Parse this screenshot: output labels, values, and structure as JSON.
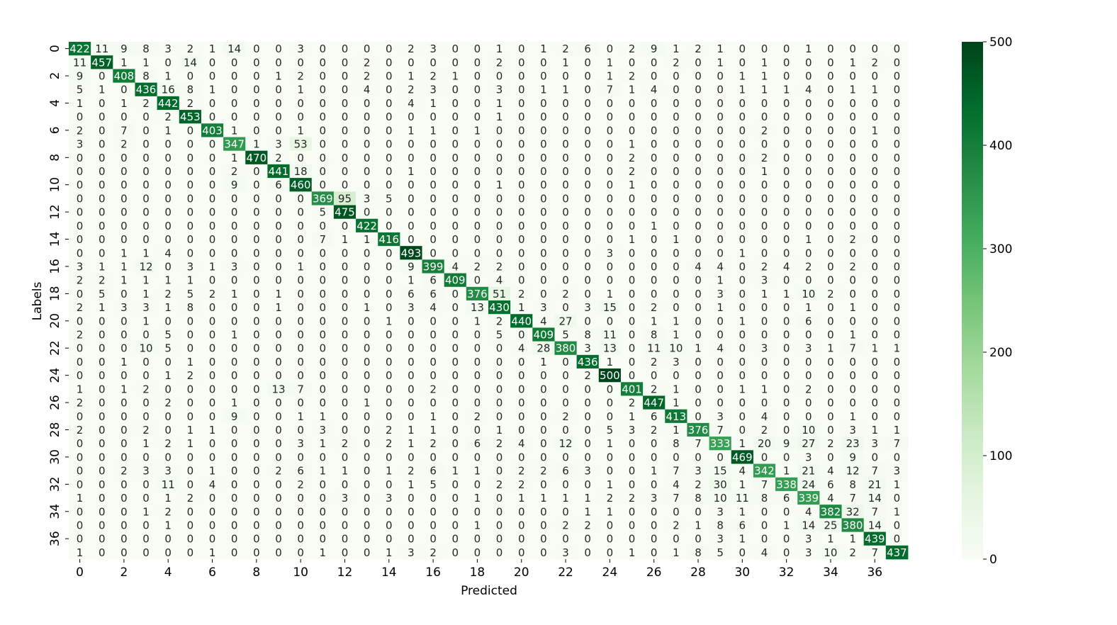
{
  "chart_data": {
    "type": "heatmap",
    "title": "",
    "xlabel": "Predicted",
    "ylabel": "Labels",
    "x_tick_labels": [
      "0",
      "2",
      "4",
      "6",
      "8",
      "10",
      "12",
      "14",
      "16",
      "18",
      "20",
      "22",
      "24",
      "26",
      "28",
      "30",
      "32",
      "34",
      "36"
    ],
    "y_tick_labels": [
      "0",
      "2",
      "4",
      "6",
      "8",
      "10",
      "12",
      "14",
      "16",
      "18",
      "20",
      "22",
      "24",
      "26",
      "28",
      "30",
      "32",
      "34",
      "36"
    ],
    "colorbar": {
      "range": [
        0,
        500
      ],
      "ticks": [
        "0",
        "100",
        "200",
        "300",
        "400",
        "500"
      ],
      "colormap": "Greens"
    },
    "colors": {
      "low": "#f7fcf5",
      "high": "#00441b"
    },
    "matrix": [
      [
        422,
        11,
        9,
        8,
        3,
        2,
        1,
        14,
        0,
        0,
        3,
        0,
        0,
        0,
        0,
        2,
        3,
        0,
        0,
        1,
        0,
        1,
        2,
        6,
        0,
        2,
        9,
        1,
        2,
        1,
        0,
        0,
        0,
        1,
        0,
        0,
        0,
        0
      ],
      [
        11,
        457,
        1,
        1,
        0,
        14,
        0,
        0,
        0,
        0,
        0,
        0,
        0,
        2,
        0,
        0,
        0,
        0,
        0,
        2,
        0,
        0,
        1,
        0,
        1,
        0,
        0,
        2,
        0,
        1,
        0,
        1,
        0,
        0,
        0,
        1,
        2,
        0
      ],
      [
        9,
        0,
        408,
        8,
        1,
        0,
        0,
        0,
        0,
        1,
        2,
        0,
        0,
        2,
        0,
        1,
        2,
        1,
        0,
        0,
        0,
        0,
        0,
        0,
        1,
        2,
        0,
        0,
        0,
        0,
        1,
        1,
        0,
        0,
        0,
        0,
        0,
        0
      ],
      [
        5,
        1,
        0,
        436,
        16,
        8,
        1,
        0,
        0,
        0,
        1,
        0,
        0,
        4,
        0,
        2,
        3,
        0,
        0,
        3,
        0,
        1,
        1,
        0,
        7,
        1,
        4,
        0,
        0,
        0,
        1,
        1,
        1,
        4,
        0,
        1,
        1,
        0
      ],
      [
        1,
        0,
        1,
        2,
        442,
        2,
        0,
        0,
        0,
        0,
        0,
        0,
        0,
        0,
        0,
        4,
        1,
        0,
        0,
        1,
        0,
        0,
        0,
        0,
        0,
        0,
        0,
        0,
        0,
        0,
        0,
        0,
        0,
        0,
        0,
        0,
        0,
        0
      ],
      [
        0,
        0,
        0,
        0,
        2,
        453,
        0,
        0,
        0,
        0,
        0,
        0,
        0,
        0,
        0,
        0,
        0,
        0,
        0,
        1,
        0,
        0,
        0,
        0,
        0,
        0,
        0,
        0,
        0,
        0,
        0,
        0,
        0,
        0,
        0,
        0,
        0,
        0
      ],
      [
        2,
        0,
        7,
        0,
        1,
        0,
        403,
        1,
        0,
        0,
        1,
        0,
        0,
        0,
        0,
        1,
        1,
        0,
        1,
        0,
        0,
        0,
        0,
        0,
        0,
        0,
        0,
        0,
        0,
        0,
        0,
        2,
        0,
        0,
        0,
        0,
        1,
        0
      ],
      [
        3,
        0,
        2,
        0,
        0,
        0,
        0,
        347,
        1,
        3,
        53,
        0,
        0,
        0,
        0,
        0,
        0,
        0,
        0,
        0,
        0,
        0,
        0,
        0,
        0,
        1,
        0,
        0,
        0,
        0,
        0,
        0,
        0,
        0,
        0,
        0,
        0,
        0
      ],
      [
        0,
        0,
        0,
        0,
        0,
        0,
        0,
        1,
        470,
        2,
        0,
        0,
        0,
        0,
        0,
        0,
        0,
        0,
        0,
        0,
        0,
        0,
        0,
        0,
        0,
        2,
        0,
        0,
        0,
        0,
        0,
        2,
        0,
        0,
        0,
        0,
        0,
        0
      ],
      [
        0,
        0,
        0,
        0,
        0,
        0,
        0,
        2,
        0,
        441,
        18,
        0,
        0,
        0,
        0,
        1,
        0,
        0,
        0,
        0,
        0,
        0,
        0,
        0,
        0,
        2,
        0,
        0,
        0,
        0,
        0,
        1,
        0,
        0,
        0,
        0,
        0,
        0
      ],
      [
        0,
        0,
        0,
        0,
        0,
        0,
        0,
        9,
        0,
        6,
        460,
        0,
        0,
        0,
        0,
        0,
        0,
        0,
        0,
        1,
        0,
        0,
        0,
        0,
        0,
        1,
        0,
        0,
        0,
        0,
        0,
        0,
        0,
        0,
        0,
        0,
        0,
        0
      ],
      [
        0,
        0,
        0,
        0,
        0,
        0,
        0,
        0,
        0,
        0,
        0,
        369,
        95,
        3,
        5,
        0,
        0,
        0,
        0,
        0,
        0,
        0,
        0,
        0,
        0,
        0,
        0,
        0,
        0,
        0,
        0,
        0,
        0,
        0,
        0,
        0,
        0,
        0
      ],
      [
        0,
        0,
        0,
        0,
        0,
        0,
        0,
        0,
        0,
        0,
        0,
        5,
        475,
        0,
        0,
        0,
        0,
        0,
        0,
        0,
        0,
        0,
        0,
        0,
        0,
        0,
        0,
        0,
        0,
        0,
        0,
        0,
        0,
        0,
        0,
        0,
        0,
        0
      ],
      [
        0,
        0,
        0,
        0,
        0,
        0,
        0,
        0,
        0,
        0,
        0,
        0,
        0,
        422,
        0,
        0,
        0,
        0,
        0,
        0,
        0,
        0,
        0,
        0,
        0,
        0,
        1,
        0,
        0,
        0,
        0,
        0,
        0,
        0,
        0,
        0,
        0,
        0
      ],
      [
        0,
        0,
        0,
        0,
        0,
        0,
        0,
        0,
        0,
        0,
        0,
        7,
        1,
        1,
        416,
        0,
        0,
        0,
        0,
        0,
        0,
        0,
        0,
        0,
        0,
        1,
        0,
        1,
        0,
        0,
        0,
        0,
        0,
        1,
        0,
        2,
        0,
        0
      ],
      [
        0,
        0,
        1,
        1,
        4,
        0,
        0,
        0,
        0,
        0,
        0,
        0,
        0,
        0,
        0,
        493,
        0,
        0,
        0,
        0,
        0,
        0,
        0,
        0,
        3,
        0,
        0,
        0,
        0,
        0,
        1,
        0,
        0,
        0,
        0,
        0,
        0,
        0
      ],
      [
        3,
        1,
        1,
        12,
        0,
        3,
        1,
        3,
        0,
        0,
        1,
        0,
        0,
        0,
        0,
        9,
        399,
        4,
        2,
        2,
        0,
        0,
        0,
        0,
        0,
        0,
        0,
        0,
        4,
        4,
        0,
        2,
        4,
        2,
        0,
        2,
        0,
        0
      ],
      [
        2,
        2,
        1,
        1,
        1,
        1,
        0,
        0,
        0,
        0,
        0,
        0,
        0,
        0,
        0,
        1,
        6,
        409,
        0,
        4,
        0,
        0,
        0,
        0,
        0,
        0,
        0,
        0,
        0,
        1,
        0,
        3,
        0,
        0,
        0,
        0,
        0,
        0
      ],
      [
        0,
        5,
        0,
        1,
        2,
        5,
        2,
        1,
        0,
        1,
        0,
        0,
        0,
        0,
        0,
        6,
        6,
        0,
        376,
        51,
        2,
        0,
        2,
        0,
        1,
        0,
        0,
        0,
        0,
        3,
        0,
        1,
        1,
        10,
        2,
        0,
        0,
        0
      ],
      [
        2,
        1,
        3,
        3,
        1,
        8,
        0,
        0,
        0,
        1,
        0,
        0,
        0,
        1,
        0,
        3,
        4,
        0,
        13,
        430,
        1,
        3,
        0,
        3,
        15,
        0,
        2,
        0,
        0,
        1,
        0,
        0,
        0,
        1,
        0,
        1,
        0,
        0
      ],
      [
        0,
        0,
        0,
        1,
        0,
        0,
        0,
        0,
        0,
        0,
        0,
        0,
        0,
        0,
        1,
        0,
        0,
        0,
        1,
        2,
        440,
        4,
        27,
        0,
        0,
        0,
        1,
        1,
        0,
        0,
        1,
        0,
        0,
        6,
        0,
        0,
        0,
        0
      ],
      [
        2,
        0,
        0,
        0,
        5,
        0,
        0,
        1,
        0,
        0,
        0,
        0,
        0,
        0,
        0,
        0,
        0,
        0,
        0,
        5,
        0,
        409,
        5,
        8,
        11,
        0,
        8,
        1,
        0,
        0,
        0,
        0,
        0,
        0,
        0,
        1,
        0,
        0
      ],
      [
        0,
        0,
        0,
        10,
        5,
        0,
        0,
        0,
        0,
        0,
        0,
        0,
        0,
        0,
        0,
        0,
        0,
        0,
        0,
        0,
        4,
        28,
        380,
        3,
        13,
        0,
        11,
        10,
        1,
        4,
        0,
        3,
        0,
        3,
        1,
        7,
        1,
        1
      ],
      [
        0,
        0,
        1,
        0,
        0,
        1,
        0,
        0,
        0,
        0,
        0,
        0,
        0,
        0,
        0,
        0,
        0,
        0,
        0,
        0,
        0,
        1,
        0,
        436,
        1,
        0,
        2,
        3,
        0,
        0,
        0,
        0,
        0,
        0,
        0,
        0,
        0,
        0
      ],
      [
        0,
        0,
        0,
        0,
        1,
        2,
        0,
        0,
        0,
        0,
        0,
        0,
        0,
        0,
        0,
        0,
        0,
        0,
        0,
        0,
        0,
        0,
        0,
        2,
        500,
        0,
        0,
        0,
        0,
        0,
        0,
        0,
        0,
        0,
        0,
        0,
        0,
        0
      ],
      [
        1,
        0,
        1,
        2,
        0,
        0,
        0,
        0,
        0,
        13,
        7,
        0,
        0,
        0,
        0,
        0,
        2,
        0,
        0,
        0,
        0,
        0,
        0,
        0,
        0,
        401,
        2,
        1,
        0,
        0,
        1,
        1,
        0,
        2,
        0,
        0,
        0,
        0
      ],
      [
        2,
        0,
        0,
        0,
        2,
        0,
        0,
        1,
        0,
        0,
        0,
        0,
        0,
        1,
        0,
        0,
        0,
        0,
        0,
        0,
        0,
        0,
        0,
        0,
        0,
        2,
        447,
        1,
        0,
        0,
        0,
        0,
        0,
        0,
        0,
        0,
        0,
        0
      ],
      [
        0,
        0,
        0,
        0,
        0,
        0,
        0,
        9,
        0,
        0,
        1,
        1,
        0,
        0,
        0,
        0,
        1,
        0,
        2,
        0,
        0,
        0,
        2,
        0,
        0,
        1,
        6,
        413,
        0,
        3,
        0,
        4,
        0,
        0,
        0,
        1,
        0,
        0
      ],
      [
        2,
        0,
        0,
        2,
        0,
        1,
        1,
        0,
        0,
        0,
        0,
        3,
        0,
        0,
        2,
        1,
        1,
        0,
        0,
        1,
        0,
        0,
        0,
        0,
        5,
        3,
        2,
        1,
        376,
        7,
        0,
        2,
        0,
        10,
        0,
        3,
        1,
        1
      ],
      [
        0,
        0,
        0,
        1,
        2,
        1,
        0,
        0,
        0,
        0,
        3,
        1,
        2,
        0,
        2,
        1,
        2,
        0,
        6,
        2,
        4,
        0,
        12,
        0,
        1,
        0,
        0,
        8,
        7,
        333,
        1,
        20,
        9,
        27,
        2,
        23,
        3,
        7
      ],
      [
        0,
        0,
        0,
        0,
        0,
        0,
        0,
        0,
        0,
        0,
        0,
        0,
        0,
        0,
        0,
        0,
        0,
        0,
        0,
        0,
        0,
        0,
        0,
        0,
        0,
        0,
        0,
        0,
        0,
        0,
        469,
        0,
        0,
        3,
        0,
        9,
        0,
        0
      ],
      [
        0,
        0,
        2,
        3,
        3,
        0,
        1,
        0,
        0,
        2,
        6,
        1,
        1,
        0,
        1,
        2,
        6,
        1,
        1,
        0,
        2,
        2,
        6,
        3,
        0,
        0,
        1,
        7,
        3,
        15,
        4,
        342,
        1,
        21,
        4,
        12,
        7,
        3
      ],
      [
        0,
        0,
        0,
        0,
        11,
        0,
        4,
        0,
        0,
        0,
        2,
        0,
        0,
        0,
        0,
        1,
        5,
        0,
        0,
        2,
        2,
        0,
        0,
        0,
        1,
        0,
        0,
        4,
        2,
        30,
        1,
        7,
        338,
        24,
        6,
        8,
        21,
        1
      ],
      [
        1,
        0,
        0,
        0,
        1,
        2,
        0,
        0,
        0,
        0,
        0,
        0,
        3,
        0,
        3,
        0,
        0,
        0,
        1,
        0,
        1,
        1,
        1,
        1,
        2,
        2,
        3,
        7,
        8,
        10,
        11,
        8,
        6,
        339,
        4,
        7,
        14,
        0
      ],
      [
        0,
        0,
        0,
        1,
        2,
        0,
        0,
        0,
        0,
        0,
        0,
        0,
        0,
        0,
        0,
        0,
        0,
        0,
        0,
        0,
        0,
        0,
        0,
        1,
        1,
        0,
        0,
        0,
        0,
        3,
        1,
        0,
        0,
        4,
        382,
        32,
        7,
        1
      ],
      [
        0,
        0,
        0,
        0,
        1,
        0,
        0,
        0,
        0,
        0,
        0,
        0,
        0,
        0,
        0,
        0,
        0,
        0,
        1,
        0,
        0,
        0,
        2,
        2,
        0,
        0,
        0,
        2,
        1,
        8,
        6,
        0,
        1,
        14,
        25,
        380,
        14,
        0
      ],
      [
        0,
        0,
        0,
        0,
        0,
        0,
        0,
        0,
        0,
        0,
        0,
        0,
        0,
        0,
        0,
        0,
        0,
        0,
        0,
        0,
        0,
        0,
        0,
        0,
        0,
        0,
        0,
        0,
        0,
        3,
        1,
        0,
        0,
        3,
        1,
        1,
        439,
        0
      ],
      [
        1,
        0,
        0,
        0,
        0,
        0,
        1,
        0,
        0,
        0,
        0,
        1,
        0,
        0,
        1,
        3,
        2,
        0,
        0,
        0,
        0,
        0,
        3,
        0,
        0,
        1,
        0,
        1,
        8,
        5,
        0,
        4,
        0,
        3,
        10,
        2,
        7,
        437
      ]
    ]
  }
}
